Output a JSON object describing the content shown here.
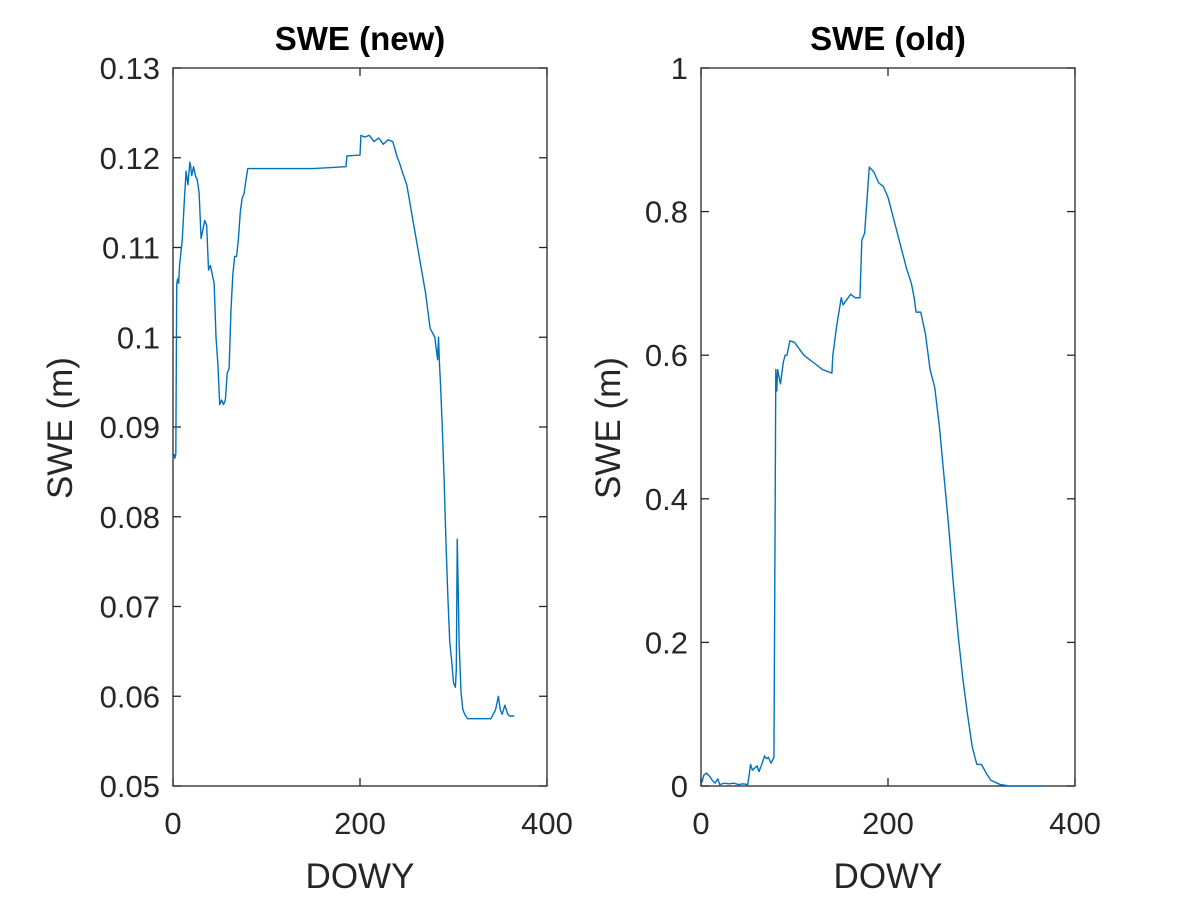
{
  "chart_data": [
    {
      "type": "line",
      "title": "SWE (new)",
      "xlabel": "DOWY",
      "ylabel": "SWE (m)",
      "xlim": [
        0,
        400
      ],
      "ylim": [
        0.05,
        0.13
      ],
      "xticks": [
        "0",
        "200",
        "400"
      ],
      "yticks": [
        "0.05",
        "0.06",
        "0.07",
        "0.08",
        "0.09",
        "0.1",
        "0.11",
        "0.12",
        "0.13"
      ],
      "grid": false,
      "color": "#0072BD",
      "series": [
        {
          "x": [
            1,
            2,
            3,
            4,
            5,
            6,
            7,
            8,
            10,
            12,
            14,
            16,
            18,
            19,
            20,
            22,
            24,
            26,
            28,
            30,
            32,
            34,
            36,
            38,
            40,
            42,
            44,
            46,
            48,
            50,
            52,
            54,
            56,
            58,
            60,
            62,
            64,
            66,
            68,
            70,
            72,
            74,
            76,
            78,
            80,
            100,
            150,
            185,
            186,
            200,
            201,
            205,
            210,
            215,
            220,
            225,
            230,
            235,
            240,
            242,
            245,
            250,
            255,
            260,
            265,
            270,
            275,
            280,
            283,
            284,
            285,
            286,
            288,
            290,
            292,
            294,
            296,
            298,
            300,
            302,
            303,
            304,
            305,
            306,
            308,
            310,
            312,
            315,
            320,
            325,
            330,
            340,
            345,
            348,
            350,
            352,
            355,
            358,
            360,
            365
          ],
          "y": [
            0.087,
            0.0865,
            0.087,
            0.106,
            0.1065,
            0.106,
            0.108,
            0.109,
            0.111,
            0.115,
            0.1185,
            0.117,
            0.1195,
            0.119,
            0.118,
            0.119,
            0.118,
            0.1175,
            0.116,
            0.111,
            0.112,
            0.113,
            0.1125,
            0.1075,
            0.108,
            0.107,
            0.106,
            0.1,
            0.097,
            0.0925,
            0.093,
            0.0925,
            0.093,
            0.096,
            0.0965,
            0.103,
            0.107,
            0.109,
            0.109,
            0.111,
            0.114,
            0.1155,
            0.116,
            0.1175,
            0.1188,
            0.1188,
            0.1188,
            0.119,
            0.1202,
            0.1203,
            0.1225,
            0.1223,
            0.1225,
            0.1218,
            0.1222,
            0.1215,
            0.122,
            0.1218,
            0.12,
            0.1195,
            0.1185,
            0.117,
            0.114,
            0.111,
            0.108,
            0.105,
            0.101,
            0.1,
            0.0975,
            0.1,
            0.097,
            0.095,
            0.09,
            0.084,
            0.077,
            0.071,
            0.066,
            0.064,
            0.0615,
            0.061,
            0.063,
            0.0775,
            0.072,
            0.066,
            0.0605,
            0.0585,
            0.058,
            0.0575,
            0.0575,
            0.0575,
            0.0575,
            0.0575,
            0.0585,
            0.06,
            0.0585,
            0.058,
            0.059,
            0.058,
            0.0578,
            0.0578
          ]
        }
      ]
    },
    {
      "type": "line",
      "title": "SWE (old)",
      "xlabel": "DOWY",
      "ylabel": "SWE (m)",
      "xlim": [
        0,
        400
      ],
      "ylim": [
        0,
        1
      ],
      "xticks": [
        "0",
        "200",
        "400"
      ],
      "yticks": [
        "0",
        "0.2",
        "0.4",
        "0.6",
        "0.8",
        "1"
      ],
      "grid": false,
      "color": "#0072BD",
      "series": [
        {
          "x": [
            1,
            3,
            6,
            10,
            12,
            15,
            18,
            20,
            25,
            30,
            35,
            40,
            45,
            50,
            52,
            53,
            55,
            60,
            62,
            65,
            68,
            70,
            72,
            75,
            78,
            79,
            80,
            81,
            82,
            85,
            88,
            90,
            92,
            95,
            100,
            110,
            120,
            130,
            140,
            141,
            145,
            150,
            152,
            160,
            165,
            170,
            172,
            175,
            180,
            185,
            190,
            195,
            200,
            205,
            210,
            215,
            220,
            225,
            228,
            230,
            235,
            240,
            245,
            250,
            255,
            260,
            265,
            270,
            275,
            280,
            285,
            290,
            295,
            300,
            305,
            310,
            320,
            330,
            340,
            365
          ],
          "y": [
            0.005,
            0.015,
            0.018,
            0.012,
            0.008,
            0.004,
            0.01,
            0.002,
            0.004,
            0.003,
            0.004,
            0.002,
            0.003,
            0.002,
            0.02,
            0.03,
            0.022,
            0.028,
            0.02,
            0.03,
            0.042,
            0.038,
            0.04,
            0.032,
            0.04,
            0.3,
            0.58,
            0.55,
            0.58,
            0.56,
            0.59,
            0.6,
            0.6,
            0.62,
            0.618,
            0.6,
            0.59,
            0.58,
            0.575,
            0.6,
            0.64,
            0.68,
            0.67,
            0.685,
            0.68,
            0.68,
            0.76,
            0.77,
            0.862,
            0.855,
            0.84,
            0.835,
            0.82,
            0.795,
            0.77,
            0.745,
            0.72,
            0.7,
            0.68,
            0.66,
            0.66,
            0.63,
            0.58,
            0.555,
            0.5,
            0.43,
            0.36,
            0.28,
            0.21,
            0.15,
            0.1,
            0.055,
            0.03,
            0.03,
            0.018,
            0.008,
            0.002,
            0.0,
            0.0,
            0.0
          ]
        }
      ]
    }
  ]
}
